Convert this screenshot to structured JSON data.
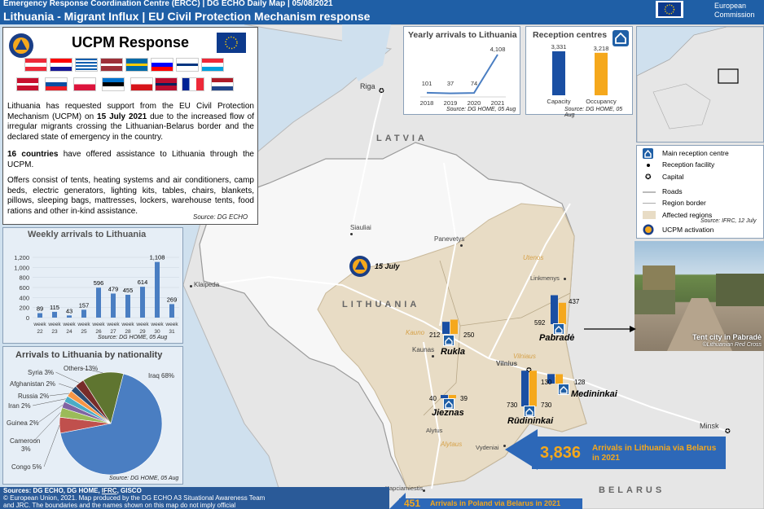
{
  "header": {
    "supertitle": "Emergency Response Coordination Centre (ERCC) | DG ECHO Daily Map | 05/08/2021",
    "title": "Lithuania - Migrant Influx | EU Civil Protection Mechanism response",
    "ec_line1": "European",
    "ec_line2": "Commission"
  },
  "ucpm": {
    "title": "UCPM Response",
    "para1_a": "Lithuania has requested support from the EU Civil Protection Mechanism (UCPM) on ",
    "para1_date": "15 July 2021",
    "para1_b": " due to the increased flow of irregular migrants crossing the Lithuanian-Belarus border and the declared state of emergency in the country.",
    "para2_a": "16 countries",
    "para2_b": " have offered assistance to Lithuania through the UCPM.",
    "para3": "Offers consist of tents, heating systems and air conditioners, camp beds, electric generators, lighting kits, tables, chairs, blankets, pillows, sleeping bags, mattresses, lockers, warehouse tents, food rations and other in-kind assistance.",
    "source": "Source: DG ECHO",
    "flags": [
      "Austria",
      "Croatia",
      "Greece",
      "Latvia",
      "Sweden",
      "Slovenia",
      "Finland",
      "Luxembourg",
      "Denmark",
      "Slovakia",
      "Poland",
      "Estonia",
      "Czechia",
      "Norway",
      "France",
      "Netherlands"
    ]
  },
  "weekly": {
    "title": "Weekly arrivals to Lithuania",
    "source": "Source: DG HOME, 05 Aug",
    "yticks": [
      "1,200",
      "1,000",
      "800",
      "600",
      "400",
      "200",
      "0"
    ]
  },
  "nationality": {
    "title": "Arrivals to Lithuania by nationality",
    "source": "Source: DG HOME, 05 Aug"
  },
  "yearly": {
    "title": "Yearly arrivals to Lithuania",
    "source": "Source: DG HOME, 05 Aug"
  },
  "reception": {
    "title": "Reception centres",
    "source": "Source: DG HOME, 05 Aug"
  },
  "chart_data": [
    {
      "type": "bar",
      "title": "Weekly arrivals to Lithuania",
      "categories": [
        "week 22",
        "week 23",
        "week 24",
        "week 25",
        "week 26",
        "week 27",
        "week 28",
        "week 29",
        "week 30",
        "week 31"
      ],
      "values": [
        89,
        115,
        43,
        157,
        596,
        479,
        455,
        614,
        1108,
        269
      ],
      "ylim": [
        0,
        1200
      ]
    },
    {
      "type": "pie",
      "title": "Arrivals to Lithuania by nationality",
      "labels": [
        "Iraq 68%",
        "Congo 5%",
        "Cameroon 3%",
        "Guinea 2%",
        "Iran 2%",
        "Russia 2%",
        "Afghanistan 2%",
        "Syria 3%",
        "Others 13%"
      ],
      "values": [
        68,
        5,
        3,
        2,
        2,
        2,
        2,
        3,
        13
      ]
    },
    {
      "type": "line",
      "title": "Yearly arrivals to Lithuania",
      "x": [
        "2018",
        "2019",
        "2020",
        "2021"
      ],
      "values": [
        101,
        37,
        74,
        4108
      ]
    },
    {
      "type": "bar",
      "title": "Reception centres",
      "categories": [
        "Capacity",
        "Occupancy"
      ],
      "values": [
        3331,
        3218
      ]
    }
  ],
  "legend": {
    "items": [
      "Main reception centre",
      "Reception facility",
      "Capital",
      "Roads",
      "Region border",
      "Affected regions",
      "UCPM activation"
    ],
    "source": "Source: IFRC, 12 July"
  },
  "photo": {
    "caption": "Tent city in Pabradė",
    "credit": "©Lithuanian Red Cross"
  },
  "map": {
    "countries": [
      "LATVIA",
      "LITHUANIA",
      "BELARUS"
    ],
    "cities": [
      "Riga",
      "Siauliai",
      "Panevetys",
      "Klaipeda",
      "Kaunas",
      "Vilnius",
      "Linkmenys",
      "Alytus",
      "Vydeniai",
      "Kapciamiestis",
      "Minsk"
    ],
    "regions": [
      "Utenos",
      "Kauno",
      "Vilniaus",
      "Alytaus"
    ],
    "activation": "15 July",
    "centres": [
      {
        "name": "Rukla",
        "cap": "212",
        "occ": "250"
      },
      {
        "name": "Pabradė",
        "cap": "592",
        "occ": "437"
      },
      {
        "name": "Medininkai",
        "cap": "130",
        "occ": "128"
      },
      {
        "name": "Jieznas",
        "cap": "40",
        "occ": "39"
      },
      {
        "name": "Rūdininkai",
        "cap": "730",
        "occ": "730"
      }
    ]
  },
  "callouts": {
    "lt_value": "3,836",
    "lt_text": "Arrivals in Lithuania via Belarus in 2021",
    "pl_value": "451",
    "pl_text": "Arrivals in Poland via Belarus in 2021"
  },
  "footer": {
    "line1_a": "Sources: DG ECHO, DG HOME, ",
    "line1_link": "IFRC",
    "line1_b": ", GISCO",
    "line2": "© European Union, 2021. Map produced by the DG ECHO A3 Situational Awareness Team",
    "line3": "and JRC. The boundaries and the names shown on this map do not imply official"
  },
  "colors": {
    "accent": "#1f5fa6",
    "capacity": "#1a4fa3",
    "occupancy": "#f5a81c",
    "affected": "#e8dcc5",
    "orange": "#f5a81c"
  }
}
